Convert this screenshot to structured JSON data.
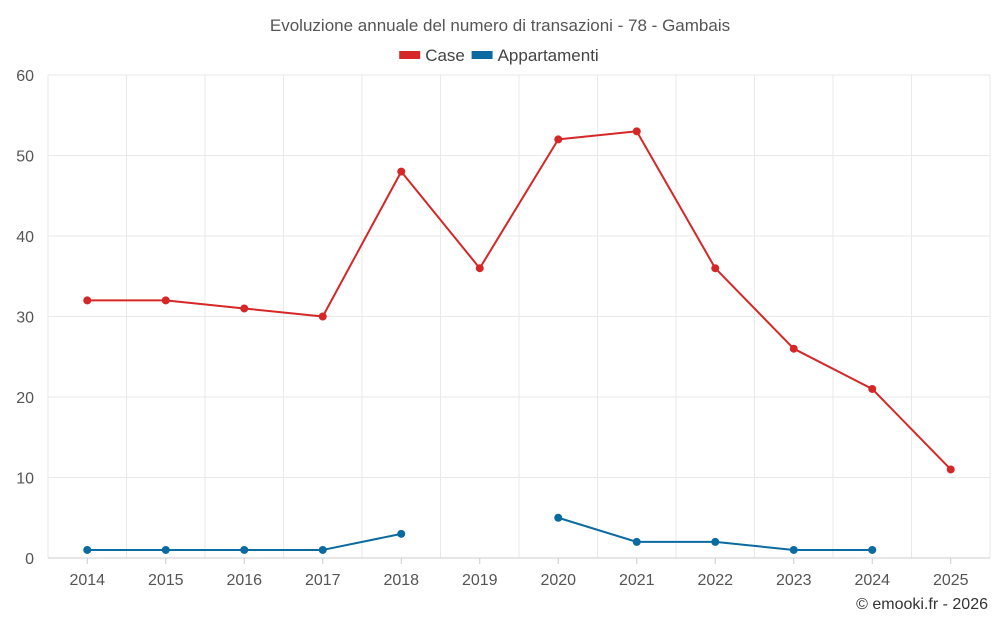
{
  "chart_data": {
    "type": "line",
    "title": "Evoluzione annuale del numero di transazioni - 78 - Gambais",
    "categories": [
      "2014",
      "2015",
      "2016",
      "2017",
      "2018",
      "2019",
      "2020",
      "2021",
      "2022",
      "2023",
      "2024",
      "2025"
    ],
    "series": [
      {
        "name": "Case",
        "color": "#d62728",
        "values": [
          32,
          32,
          31,
          30,
          48,
          36,
          52,
          53,
          36,
          26,
          21,
          11
        ]
      },
      {
        "name": "Appartamenti",
        "color": "#0b6a9f",
        "values": [
          1,
          1,
          1,
          1,
          3,
          null,
          5,
          2,
          2,
          1,
          1,
          null
        ]
      }
    ],
    "ylim": [
      0,
      60
    ],
    "yticks": [
      "0",
      "10",
      "20",
      "30",
      "40",
      "50",
      "60"
    ],
    "xlabel": "",
    "ylabel": "",
    "grid": true,
    "legend": "top-center"
  },
  "credit": "© emooki.fr - 2026"
}
